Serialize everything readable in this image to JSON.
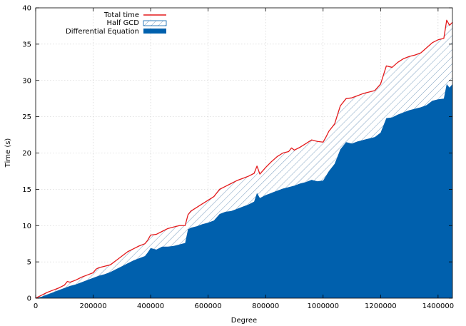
{
  "chart_data": {
    "type": "area",
    "title": "",
    "xlabel": "Degree",
    "ylabel": "Time (s)",
    "xlim": [
      0,
      1450000
    ],
    "ylim": [
      0,
      40
    ],
    "xticks": [
      0,
      200000,
      400000,
      600000,
      800000,
      1000000,
      1200000,
      1400000
    ],
    "xtick_labels": [
      "0",
      "200000",
      "400000",
      "600000",
      "800000",
      "1000000",
      "1200000",
      "1400000"
    ],
    "yticks": [
      0,
      5,
      10,
      15,
      20,
      25,
      30,
      35,
      40
    ],
    "ytick_labels": [
      "0",
      "5",
      "10",
      "15",
      "20",
      "25",
      "30",
      "35",
      "40"
    ],
    "grid": true,
    "legend_position": "top-left",
    "stacked": true,
    "series": [
      {
        "name": "Differential Equation",
        "style": "filled-area",
        "color": "#0060ad",
        "points": [
          [
            0,
            0
          ],
          [
            20000,
            0.2
          ],
          [
            40000,
            0.5
          ],
          [
            60000,
            0.8
          ],
          [
            80000,
            1.1
          ],
          [
            100000,
            1.4
          ],
          [
            120000,
            1.7
          ],
          [
            140000,
            1.9
          ],
          [
            160000,
            2.2
          ],
          [
            180000,
            2.5
          ],
          [
            200000,
            2.8
          ],
          [
            220000,
            3.1
          ],
          [
            240000,
            3.3
          ],
          [
            260000,
            3.6
          ],
          [
            280000,
            4.0
          ],
          [
            300000,
            4.4
          ],
          [
            320000,
            4.8
          ],
          [
            340000,
            5.2
          ],
          [
            360000,
            5.5
          ],
          [
            380000,
            5.8
          ],
          [
            390000,
            6.3
          ],
          [
            400000,
            6.9
          ],
          [
            420000,
            6.7
          ],
          [
            440000,
            7.1
          ],
          [
            460000,
            7.1
          ],
          [
            480000,
            7.2
          ],
          [
            500000,
            7.4
          ],
          [
            520000,
            7.6
          ],
          [
            530000,
            9.5
          ],
          [
            540000,
            9.7
          ],
          [
            560000,
            9.9
          ],
          [
            580000,
            10.2
          ],
          [
            600000,
            10.4
          ],
          [
            620000,
            10.7
          ],
          [
            640000,
            11.6
          ],
          [
            660000,
            11.9
          ],
          [
            680000,
            12.0
          ],
          [
            700000,
            12.3
          ],
          [
            720000,
            12.6
          ],
          [
            740000,
            12.9
          ],
          [
            760000,
            13.3
          ],
          [
            770000,
            14.5
          ],
          [
            780000,
            13.8
          ],
          [
            800000,
            14.2
          ],
          [
            820000,
            14.5
          ],
          [
            840000,
            14.8
          ],
          [
            860000,
            15.1
          ],
          [
            880000,
            15.3
          ],
          [
            900000,
            15.5
          ],
          [
            920000,
            15.8
          ],
          [
            940000,
            16.0
          ],
          [
            960000,
            16.3
          ],
          [
            980000,
            16.1
          ],
          [
            1000000,
            16.2
          ],
          [
            1020000,
            17.5
          ],
          [
            1040000,
            18.5
          ],
          [
            1060000,
            20.5
          ],
          [
            1080000,
            21.5
          ],
          [
            1100000,
            21.3
          ],
          [
            1120000,
            21.6
          ],
          [
            1140000,
            21.8
          ],
          [
            1160000,
            22.0
          ],
          [
            1180000,
            22.2
          ],
          [
            1200000,
            22.8
          ],
          [
            1220000,
            24.8
          ],
          [
            1240000,
            24.9
          ],
          [
            1260000,
            25.3
          ],
          [
            1280000,
            25.6
          ],
          [
            1300000,
            25.9
          ],
          [
            1320000,
            26.1
          ],
          [
            1340000,
            26.3
          ],
          [
            1360000,
            26.6
          ],
          [
            1380000,
            27.2
          ],
          [
            1400000,
            27.4
          ],
          [
            1420000,
            27.5
          ],
          [
            1430000,
            29.5
          ],
          [
            1440000,
            29.0
          ],
          [
            1450000,
            29.5
          ]
        ]
      },
      {
        "name": "Half GCD",
        "style": "hatched-area",
        "color": "#0060ad",
        "fill_between": [
          "Differential Equation",
          "Total time"
        ]
      },
      {
        "name": "Total time",
        "style": "line",
        "color": "#e41a1c",
        "points": [
          [
            0,
            0
          ],
          [
            20000,
            0.4
          ],
          [
            40000,
            0.8
          ],
          [
            60000,
            1.1
          ],
          [
            80000,
            1.4
          ],
          [
            100000,
            1.8
          ],
          [
            110000,
            2.3
          ],
          [
            120000,
            2.2
          ],
          [
            140000,
            2.5
          ],
          [
            160000,
            2.9
          ],
          [
            180000,
            3.2
          ],
          [
            200000,
            3.5
          ],
          [
            210000,
            4.0
          ],
          [
            220000,
            4.2
          ],
          [
            240000,
            4.4
          ],
          [
            260000,
            4.6
          ],
          [
            280000,
            5.2
          ],
          [
            300000,
            5.8
          ],
          [
            320000,
            6.4
          ],
          [
            340000,
            6.8
          ],
          [
            360000,
            7.2
          ],
          [
            380000,
            7.5
          ],
          [
            390000,
            8.0
          ],
          [
            400000,
            8.7
          ],
          [
            420000,
            8.8
          ],
          [
            440000,
            9.2
          ],
          [
            460000,
            9.6
          ],
          [
            480000,
            9.8
          ],
          [
            500000,
            10.0
          ],
          [
            520000,
            10.0
          ],
          [
            530000,
            11.5
          ],
          [
            540000,
            12.0
          ],
          [
            560000,
            12.5
          ],
          [
            580000,
            13.0
          ],
          [
            600000,
            13.5
          ],
          [
            620000,
            14.0
          ],
          [
            640000,
            15.0
          ],
          [
            660000,
            15.4
          ],
          [
            680000,
            15.8
          ],
          [
            700000,
            16.2
          ],
          [
            720000,
            16.5
          ],
          [
            740000,
            16.8
          ],
          [
            760000,
            17.2
          ],
          [
            770000,
            18.2
          ],
          [
            780000,
            17.1
          ],
          [
            800000,
            18.0
          ],
          [
            820000,
            18.8
          ],
          [
            840000,
            19.5
          ],
          [
            860000,
            20.0
          ],
          [
            880000,
            20.2
          ],
          [
            890000,
            20.7
          ],
          [
            900000,
            20.4
          ],
          [
            920000,
            20.8
          ],
          [
            940000,
            21.3
          ],
          [
            960000,
            21.8
          ],
          [
            980000,
            21.6
          ],
          [
            1000000,
            21.5
          ],
          [
            1010000,
            22.2
          ],
          [
            1020000,
            23.0
          ],
          [
            1040000,
            24.0
          ],
          [
            1060000,
            26.5
          ],
          [
            1080000,
            27.5
          ],
          [
            1100000,
            27.6
          ],
          [
            1120000,
            27.9
          ],
          [
            1140000,
            28.2
          ],
          [
            1160000,
            28.4
          ],
          [
            1180000,
            28.6
          ],
          [
            1200000,
            29.5
          ],
          [
            1220000,
            32.0
          ],
          [
            1240000,
            31.8
          ],
          [
            1260000,
            32.5
          ],
          [
            1280000,
            33.0
          ],
          [
            1300000,
            33.3
          ],
          [
            1320000,
            33.5
          ],
          [
            1340000,
            33.8
          ],
          [
            1360000,
            34.5
          ],
          [
            1380000,
            35.2
          ],
          [
            1400000,
            35.6
          ],
          [
            1420000,
            35.8
          ],
          [
            1430000,
            38.3
          ],
          [
            1440000,
            37.6
          ],
          [
            1450000,
            38.0
          ]
        ]
      }
    ]
  }
}
